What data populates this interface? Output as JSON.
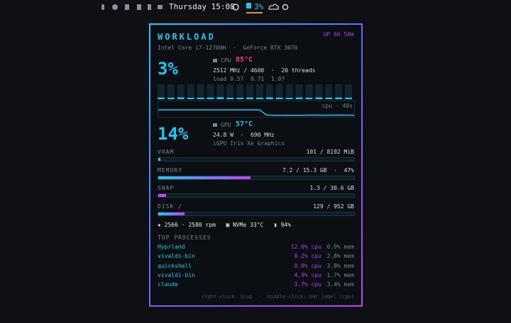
{
  "topbar": {
    "clock": "Thursday 15:08",
    "cpu": "3%"
  },
  "panel": {
    "title": "WORKLOAD",
    "uptime": "UP 6h 50m",
    "hardware": "Intel Core i7-12700H  ·  GeForce RTX 3070",
    "cpu": {
      "usage": "3%",
      "label": "CPU",
      "temp": "85°C",
      "freq": "2512 MHz / 4600  ·  20 threads",
      "load": "load 0.57  0.71  1.07",
      "core_load": [
        4,
        3,
        5,
        2,
        3,
        4,
        6,
        3,
        2,
        4,
        3,
        5,
        3,
        2,
        4,
        3,
        5,
        3,
        4,
        3
      ],
      "history_label": "cpu · 48s",
      "history": [
        45,
        45,
        45,
        45,
        45,
        45,
        45,
        45,
        45,
        45,
        45,
        45,
        45,
        45,
        45,
        45,
        12,
        10,
        10,
        11,
        10,
        10,
        11,
        12,
        11,
        11,
        11,
        12,
        11,
        11
      ]
    },
    "gpu": {
      "usage": "14%",
      "label": "GPU",
      "temp": "57°C",
      "power": "24.8 W  ·  690 MHz",
      "name": "iGPU Iris Xe Graphics"
    },
    "meters": [
      {
        "label": "VRAM",
        "value": "101 / 8192 MiB",
        "percent": 1.2
      },
      {
        "label": "MEMORY",
        "value": "7.2 / 15.3 GB  ·  47%",
        "percent": 47
      },
      {
        "label": "SWAP",
        "value": "1.3 / 30.6 GB",
        "percent": 4
      },
      {
        "label": "DISK /",
        "value": "129 / 952 GB",
        "percent": 13.5
      }
    ],
    "sensors": {
      "fan": "2566 · 2580 rpm",
      "nvme": "NVMe 33°C",
      "battery": "94%"
    },
    "processes": {
      "title": "TOP PROCESSES",
      "rows": [
        {
          "name": "Hyprland",
          "cpu": "12.6% cpu",
          "mem": "0.9% mem"
        },
        {
          "name": "vivaldi-bin",
          "cpu": "8.2% cpu",
          "mem": "2.8% mem"
        },
        {
          "name": "quickshell",
          "cpu": "8.0% cpu",
          "mem": "3.8% mem"
        },
        {
          "name": "vivaldi-bin",
          "cpu": "4.9% cpu",
          "mem": "1.7% mem"
        },
        {
          "name": "claude",
          "cpu": "3.7% cpu",
          "mem": "3.4% mem"
        }
      ]
    },
    "footer": "right-click: btop  ·  middle-click: bar label (cpu)"
  }
}
